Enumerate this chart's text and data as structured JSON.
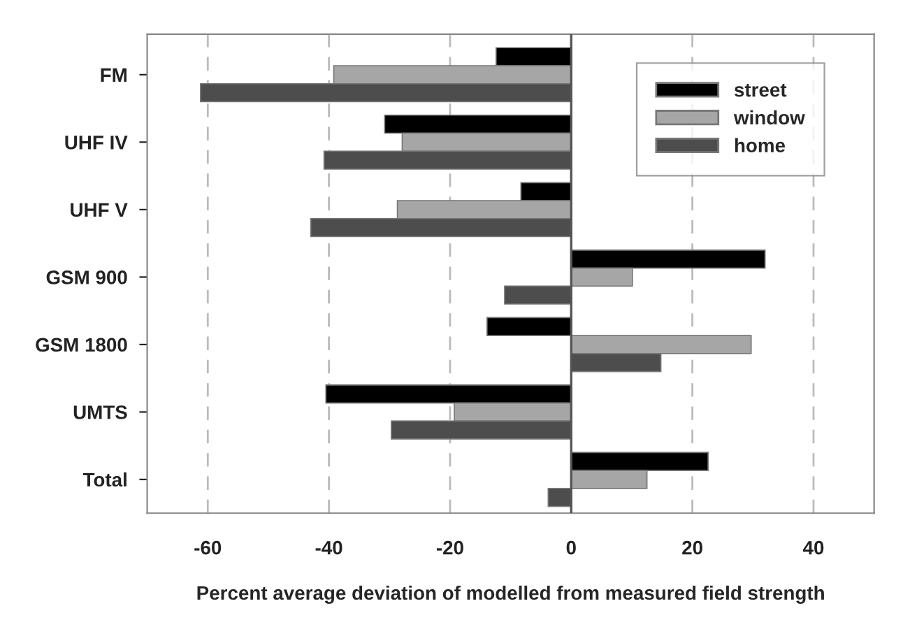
{
  "chart_data": {
    "type": "bar",
    "orientation": "horizontal",
    "xlabel": "Percent average deviation of modelled from measured field strength",
    "categories": [
      "FM",
      "UHF IV",
      "UHF V",
      "GSM 900",
      "GSM 1800",
      "UMTS",
      "Total"
    ],
    "series": [
      {
        "name": "street",
        "color": "#000000",
        "values": [
          -12.4,
          -30.8,
          -8.3,
          32.0,
          -13.9,
          -40.5,
          22.6
        ]
      },
      {
        "name": "window",
        "color": "#a6a6a6",
        "values": [
          -39.2,
          -27.9,
          -28.7,
          10.1,
          29.7,
          -19.3,
          12.5
        ]
      },
      {
        "name": "home",
        "color": "#4d4d4d",
        "values": [
          -61.2,
          -40.8,
          -43.0,
          -11.0,
          14.8,
          -29.7,
          -3.8
        ]
      }
    ],
    "xlim": [
      -70,
      50
    ],
    "xticks": [
      -60,
      -40,
      -20,
      0,
      20,
      40
    ],
    "grid": "x",
    "legend": "top right",
    "ref_lines": [
      {
        "axis": "x",
        "value": 0,
        "color": "#555555",
        "line_style": "solid"
      }
    ]
  }
}
